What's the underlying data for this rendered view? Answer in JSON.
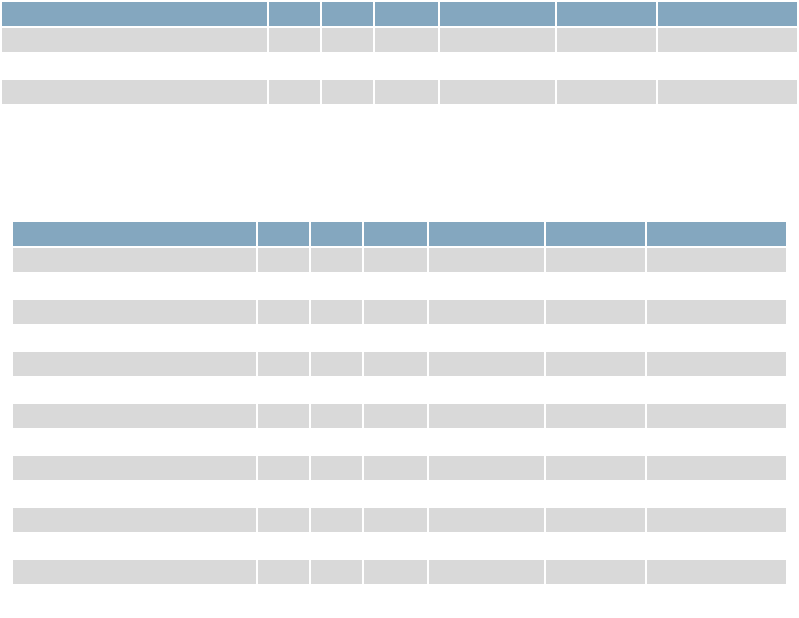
{
  "tables": [
    {
      "header": [
        "",
        "",
        "",
        "",
        "",
        "",
        ""
      ],
      "rows": [
        {
          "cells": [
            "",
            "",
            "",
            "",
            "",
            "",
            ""
          ],
          "shaded": true
        },
        {
          "cells": [
            "",
            "",
            "",
            "",
            "",
            "",
            ""
          ],
          "shaded": false
        },
        {
          "cells": [
            "",
            "",
            "",
            "",
            "",
            "",
            ""
          ],
          "shaded": true
        }
      ]
    },
    {
      "header": [
        "",
        "",
        "",
        "",
        "",
        "",
        ""
      ],
      "rows": [
        {
          "cells": [
            "",
            "",
            "",
            "",
            "",
            "",
            ""
          ],
          "shaded": true
        },
        {
          "cells": [
            "",
            "",
            "",
            "",
            "",
            "",
            ""
          ],
          "shaded": false
        },
        {
          "cells": [
            "",
            "",
            "",
            "",
            "",
            "",
            ""
          ],
          "shaded": true
        },
        {
          "cells": [
            "",
            "",
            "",
            "",
            "",
            "",
            ""
          ],
          "shaded": false
        },
        {
          "cells": [
            "",
            "",
            "",
            "",
            "",
            "",
            ""
          ],
          "shaded": true
        },
        {
          "cells": [
            "",
            "",
            "",
            "",
            "",
            "",
            ""
          ],
          "shaded": false
        },
        {
          "cells": [
            "",
            "",
            "",
            "",
            "",
            "",
            ""
          ],
          "shaded": true
        },
        {
          "cells": [
            "",
            "",
            "",
            "",
            "",
            "",
            ""
          ],
          "shaded": false
        },
        {
          "cells": [
            "",
            "",
            "",
            "",
            "",
            "",
            ""
          ],
          "shaded": true
        },
        {
          "cells": [
            "",
            "",
            "",
            "",
            "",
            "",
            ""
          ],
          "shaded": false
        },
        {
          "cells": [
            "",
            "",
            "",
            "",
            "",
            "",
            ""
          ],
          "shaded": true
        },
        {
          "cells": [
            "",
            "",
            "",
            "",
            "",
            "",
            ""
          ],
          "shaded": false
        },
        {
          "cells": [
            "",
            "",
            "",
            "",
            "",
            "",
            ""
          ],
          "shaded": true
        }
      ]
    }
  ],
  "colors": {
    "header": "#84a7bf",
    "shaded_row": "#d9d9d9",
    "background": "#ffffff"
  }
}
